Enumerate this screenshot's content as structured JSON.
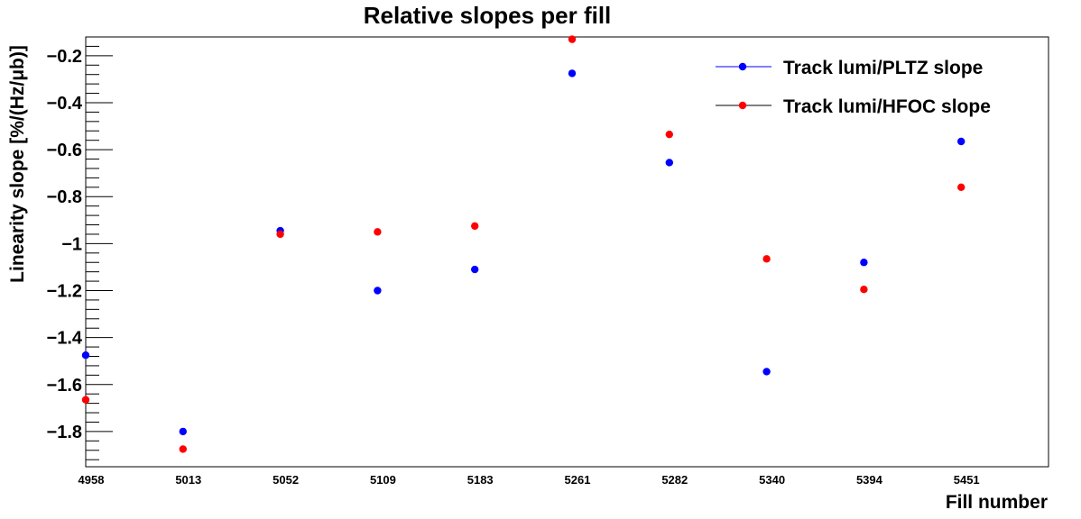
{
  "chart_data": {
    "type": "scatter",
    "title": "Relative slopes per fill",
    "xlabel": "Fill number",
    "ylabel": "Linearity slope [%/(Hz/μb)]",
    "categories": [
      "4958",
      "5013",
      "5052",
      "5109",
      "5183",
      "5261",
      "5282",
      "5340",
      "5394",
      "5451"
    ],
    "ylim": [
      -1.95,
      -0.12
    ],
    "yticks": [
      -1.8,
      -1.6,
      -1.4,
      -1.2,
      -1,
      -0.8,
      -0.6,
      -0.4,
      -0.2
    ],
    "ytick_labels": [
      "−1.8",
      "−1.6",
      "−1.4",
      "−1.2",
      "−1",
      "−0.8",
      "−0.6",
      "−0.4",
      "−0.2"
    ],
    "grid": false,
    "legend_position": "top-right",
    "series": [
      {
        "name": "Track lumi/PLTZ slope",
        "color": "#0000ff",
        "values": [
          -1.475,
          -1.8,
          -0.945,
          -1.2,
          -1.11,
          -0.275,
          -0.655,
          -1.545,
          -1.08,
          -0.565
        ]
      },
      {
        "name": "Track lumi/HFOC slope",
        "color": "#ff0000",
        "values": [
          -1.665,
          -1.875,
          -0.96,
          -0.95,
          -0.925,
          -0.13,
          -0.535,
          -1.065,
          -1.195,
          -0.76
        ]
      }
    ]
  }
}
